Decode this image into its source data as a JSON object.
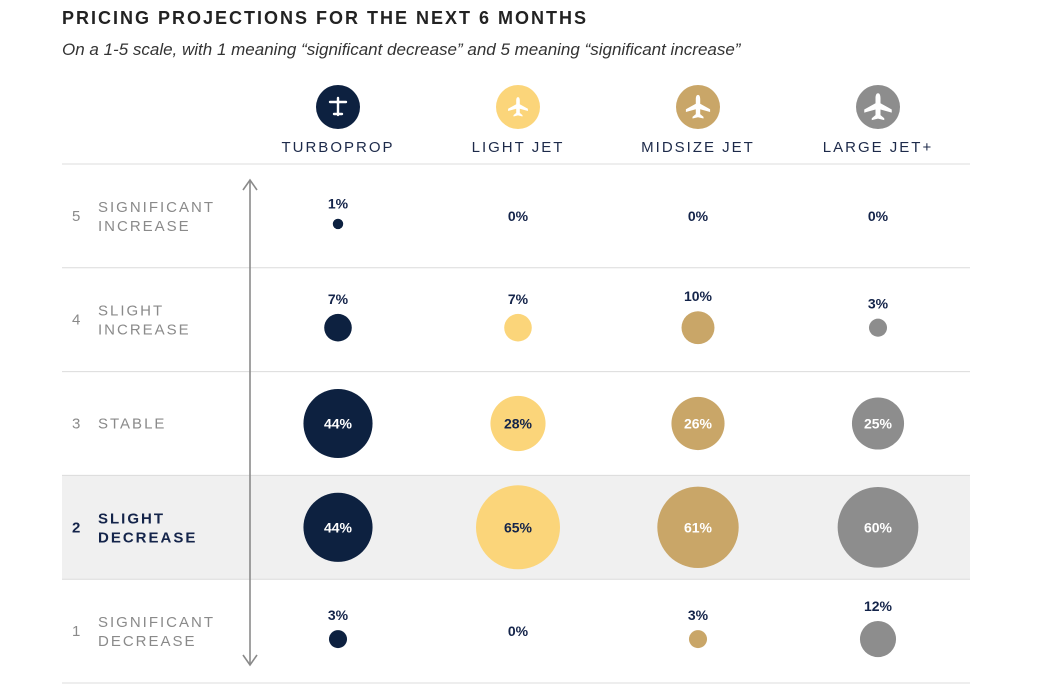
{
  "title": "PRICING PROJECTIONS FOR THE NEXT 6 MONTHS",
  "subtitle": "On a 1-5 scale, with 1 meaning “significant decrease” and 5 meaning “significant increase”",
  "colors": {
    "turboprop": "#0d2140",
    "light_jet": "#fbd57a",
    "midsize_jet": "#c9a668",
    "large_jet": "#8d8d8d",
    "highlight_row": "#f0f0f0"
  },
  "chart_data": {
    "type": "bubble-matrix",
    "title": "PRICING PROJECTIONS FOR THE NEXT 6 MONTHS",
    "categories": [
      "TURBOPROP",
      "LIGHT JET",
      "MIDSIZE JET",
      "LARGE JET+"
    ],
    "category_icons": [
      "turboprop-plane-icon",
      "light-jet-plane-icon",
      "midsize-jet-plane-icon",
      "large-jet-plane-icon"
    ],
    "rows": [
      {
        "score": "5",
        "label_lines": [
          "SIGNIFICANT",
          "INCREASE"
        ],
        "highlight": false
      },
      {
        "score": "4",
        "label_lines": [
          "SLIGHT",
          "INCREASE"
        ],
        "highlight": false
      },
      {
        "score": "3",
        "label_lines": [
          "STABLE"
        ],
        "highlight": false
      },
      {
        "score": "2",
        "label_lines": [
          "SLIGHT",
          "DECREASE"
        ],
        "highlight": true
      },
      {
        "score": "1",
        "label_lines": [
          "SIGNIFICANT",
          "DECREASE"
        ],
        "highlight": false
      }
    ],
    "series": [
      {
        "name": "TURBOPROP",
        "values": [
          1,
          7,
          44,
          44,
          3
        ]
      },
      {
        "name": "LIGHT JET",
        "values": [
          0,
          7,
          28,
          65,
          0
        ]
      },
      {
        "name": "MIDSIZE JET",
        "values": [
          0,
          10,
          26,
          61,
          3
        ]
      },
      {
        "name": "LARGE JET+",
        "values": [
          0,
          3,
          25,
          60,
          12
        ]
      }
    ],
    "value_suffix": "%"
  }
}
